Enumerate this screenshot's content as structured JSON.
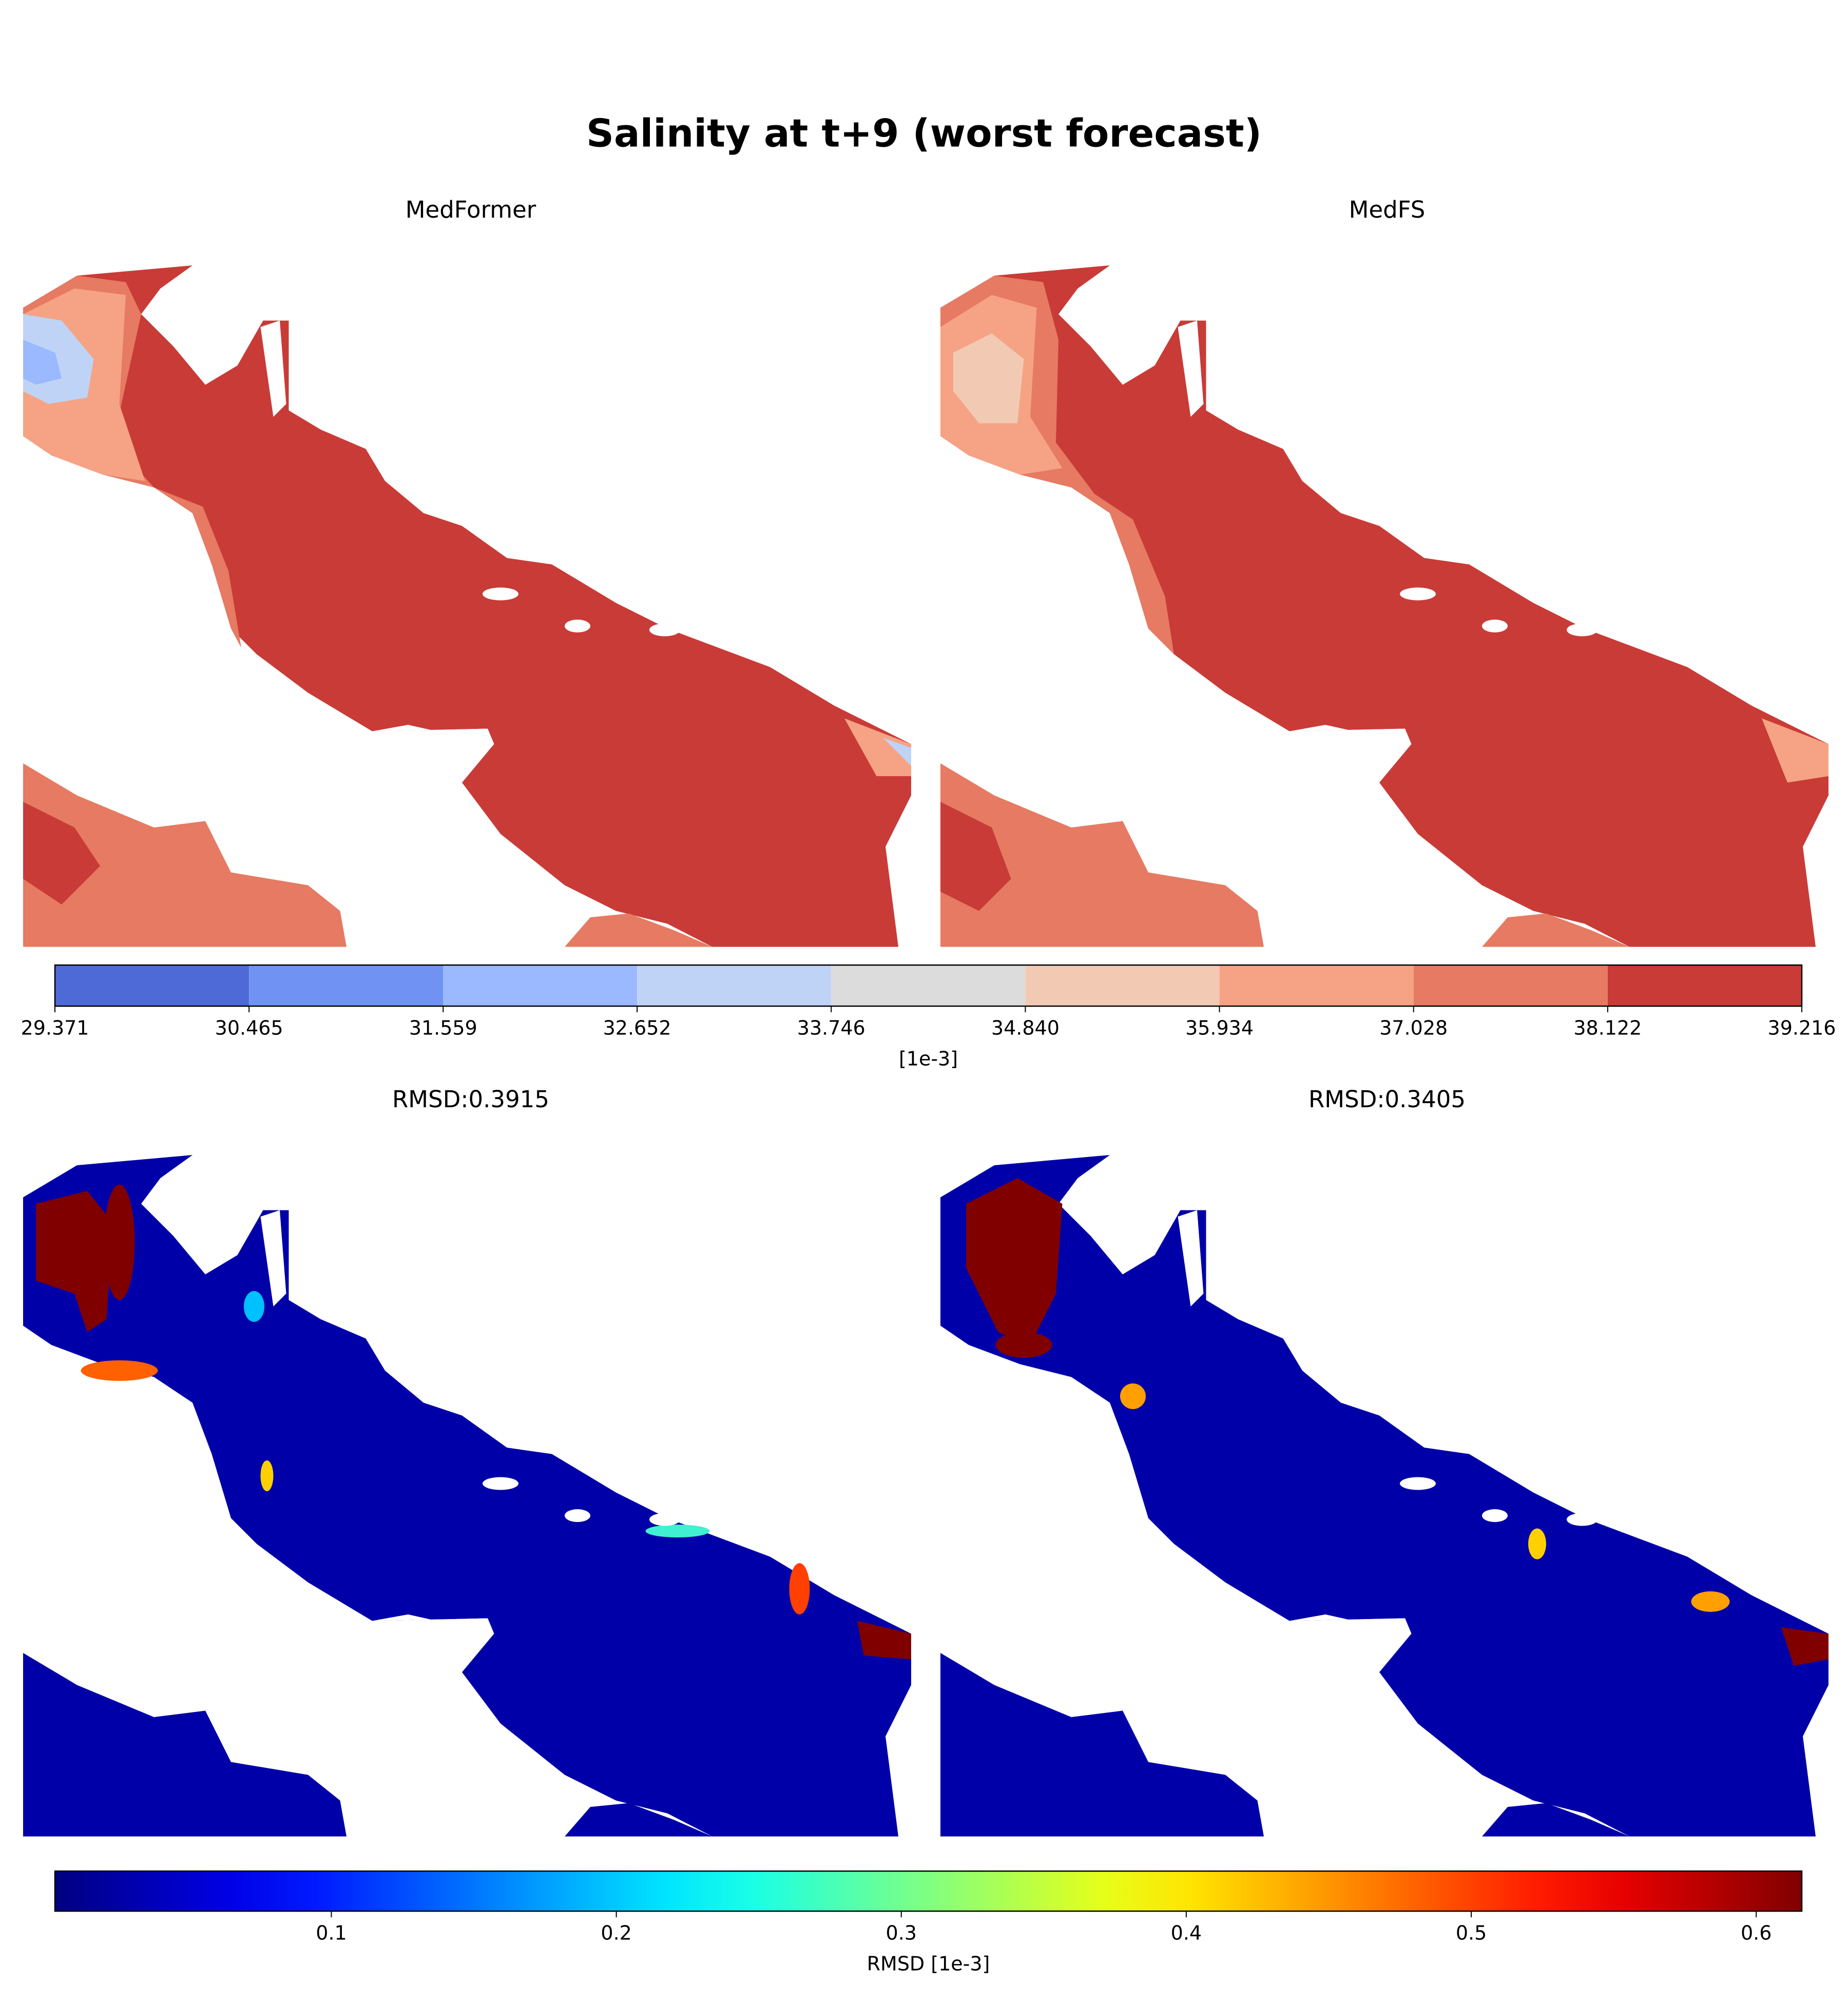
{
  "suptitle": "Salinity at t+9 (worst forecast)",
  "chart_data": [
    {
      "type": "contour",
      "subplot_titles": [
        "MedFormer",
        "MedFS"
      ],
      "colorbar_label": "[1e-3]",
      "clim": [
        29.371,
        39.216
      ],
      "ticks": [
        29.371,
        30.465,
        31.559,
        32.652,
        33.746,
        {
          "value": 34.84,
          "label": "34.840"
        },
        35.934,
        37.028,
        38.122,
        39.216
      ],
      "colors": [
        "#4e6ad7",
        "#7093f3",
        "#9ab9fe",
        "#bfd3f6",
        "#dcdcdc",
        "#f2cab4",
        "#f5a384",
        "#e67a62",
        "#c93b37"
      ]
    },
    {
      "type": "heatmap",
      "subplot_titles": [
        "RMSD:0.3915",
        "RMSD:0.3405"
      ],
      "colorbar_label": "RMSD [1e-3]",
      "clim": [
        0.003,
        0.616
      ],
      "ticks": [
        0.1,
        0.2,
        0.3,
        0.4,
        0.5,
        0.6
      ],
      "colormap": "jet"
    }
  ]
}
